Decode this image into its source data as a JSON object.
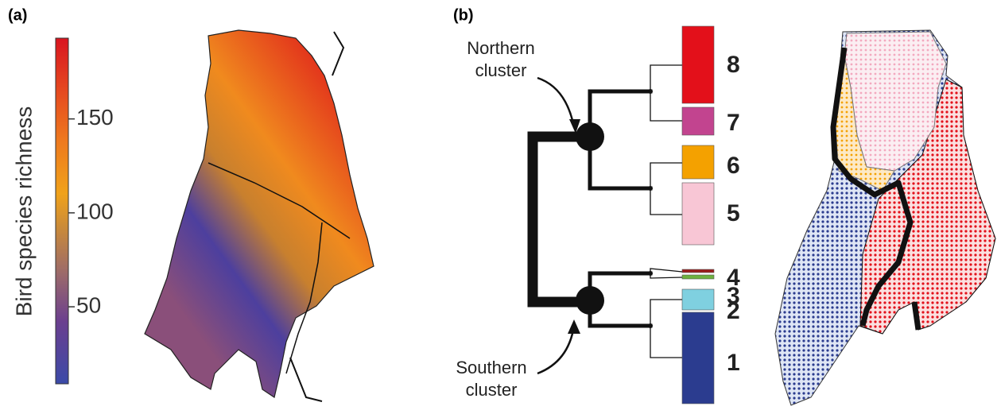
{
  "panel_a": {
    "label": "(a)",
    "colorbar": {
      "label": "Bird species richness",
      "range": [
        9,
        193
      ],
      "ticks": [
        50,
        100,
        150
      ]
    }
  },
  "panel_b": {
    "label": "(b)",
    "northern_cluster": [
      "Northern",
      "cluster"
    ],
    "southern_cluster": [
      "Southern",
      "cluster"
    ],
    "clusters": [
      {
        "label": "8",
        "color": "#e3101a"
      },
      {
        "label": "7",
        "color": "#c2448f"
      },
      {
        "label": "6",
        "color": "#f4a100"
      },
      {
        "label": "5",
        "color": "#f8c6d5"
      },
      {
        "label": "4",
        "color": "#9b1b1b"
      },
      {
        "label": "3",
        "color": "#6db13f"
      },
      {
        "label": "2",
        "color": "#7fd0e0"
      },
      {
        "label": "1",
        "color": "#2b3c8f"
      }
    ]
  }
}
